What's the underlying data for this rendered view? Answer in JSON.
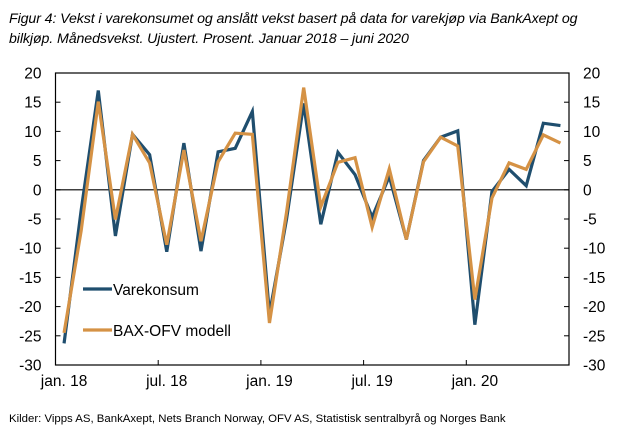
{
  "caption": {
    "line1": "Figur 4: Vekst i varekonsumet og anslått vekst basert på data for varekjøp via BankAxept og",
    "line2": "bilkjøp. Månedsvekst. Ujustert. Prosent. Januar 2018 – juni 2020"
  },
  "source": "Kilder: Vipps AS, BankAxept, Nets Branch Norway, OFV AS, Statistisk sentralbyrå og Norges Bank",
  "chart_data": {
    "type": "line",
    "title": "Figur 4: Vekst i varekonsumet og anslått vekst basert på data for varekjøp via BankAxept og bilkjøp. Månedsvekst. Ujustert. Prosent. Januar 2018 – juni 2020",
    "xlabel": "",
    "ylabel": "",
    "ylim": [
      -30,
      20
    ],
    "yticks": [
      "20",
      "15",
      "10",
      "5",
      "0",
      "-5",
      "-10",
      "-15",
      "-20",
      "-25",
      "-30"
    ],
    "ytick_values": [
      20,
      15,
      10,
      5,
      0,
      -5,
      -10,
      -15,
      -20,
      -25,
      -30
    ],
    "xtick_labels": [
      "jan. 18",
      "jul. 18",
      "jan. 19",
      "jul. 19",
      "jan. 20"
    ],
    "xtick_indices": [
      0,
      6,
      12,
      18,
      24
    ],
    "grid": false,
    "legend_position": "bottom-left",
    "categories": [
      "2018-01",
      "2018-02",
      "2018-03",
      "2018-04",
      "2018-05",
      "2018-06",
      "2018-07",
      "2018-08",
      "2018-09",
      "2018-10",
      "2018-11",
      "2018-12",
      "2019-01",
      "2019-02",
      "2019-03",
      "2019-04",
      "2019-05",
      "2019-06",
      "2019-07",
      "2019-08",
      "2019-09",
      "2019-10",
      "2019-11",
      "2019-12",
      "2020-01",
      "2020-02",
      "2020-03",
      "2020-04",
      "2020-05",
      "2020-06"
    ],
    "series": [
      {
        "name": "Varekonsum",
        "color": "#1f4e6e",
        "values": [
          -26.3,
          -3.5,
          17.0,
          -7.9,
          9.5,
          6.0,
          -10.6,
          8.0,
          -10.5,
          6.5,
          7.1,
          13.4,
          -21.3,
          -5.0,
          14.8,
          -5.9,
          6.4,
          2.6,
          -4.7,
          2.3,
          -8.5,
          5.0,
          9.0,
          10.1,
          -23.1,
          -0.3,
          3.5,
          0.7,
          11.4,
          11.0
        ]
      },
      {
        "name": "BAX-OFV modell",
        "color": "#d59245",
        "values": [
          -24.5,
          -7.0,
          15.1,
          -5.1,
          9.5,
          4.6,
          -9.4,
          6.8,
          -8.8,
          4.8,
          9.7,
          9.5,
          -22.8,
          -3.8,
          17.5,
          -2.9,
          4.7,
          5.5,
          -6.4,
          3.6,
          -8.5,
          4.8,
          9.0,
          7.5,
          -18.8,
          -1.4,
          4.6,
          3.5,
          9.4,
          8.0
        ]
      }
    ]
  }
}
